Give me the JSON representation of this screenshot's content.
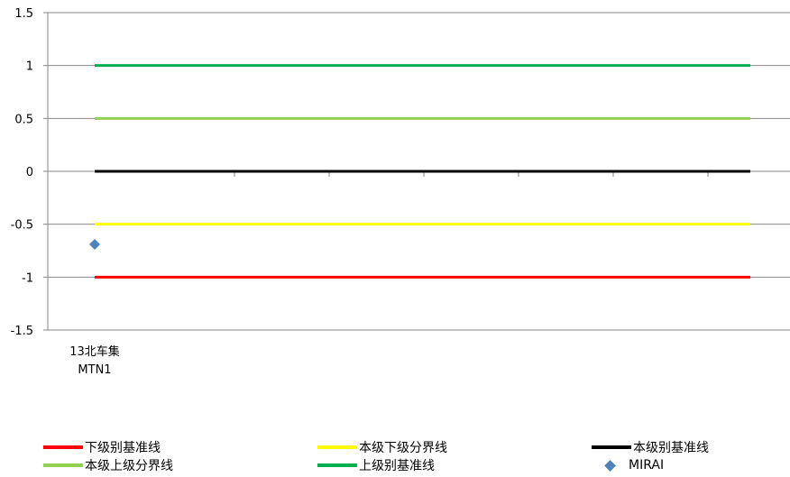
{
  "chart_data": {
    "type": "line",
    "categories": [
      "13北车集",
      "MTN1"
    ],
    "category_label_lines": [
      "13北车集",
      "MTN1"
    ],
    "ylim": [
      -1.5,
      1.5
    ],
    "yticks": [
      "1.5",
      "1",
      "0.5",
      "0",
      "-0.5",
      "-1",
      "-1.5"
    ],
    "ytick_values": [
      1.5,
      1,
      0.5,
      0,
      -0.5,
      -1,
      -1.5
    ],
    "grid": true,
    "legend_position": "bottom",
    "series": [
      {
        "name": "下级别基准线",
        "kind": "line",
        "color": "#ff0000",
        "value": -1
      },
      {
        "name": "本级下级分界线",
        "kind": "line",
        "color": "#ffff00",
        "value": -0.5
      },
      {
        "name": "本级别基准线",
        "kind": "line",
        "color": "#000000",
        "value": 0
      },
      {
        "name": "本级上级分界线",
        "kind": "line",
        "color": "#92d050",
        "value": 0.5
      },
      {
        "name": "上级别基准线",
        "kind": "line",
        "color": "#00b050",
        "value": 1
      },
      {
        "name": "MIRAI",
        "kind": "scatter",
        "color": "#4f81bd",
        "value": -0.69
      }
    ]
  }
}
